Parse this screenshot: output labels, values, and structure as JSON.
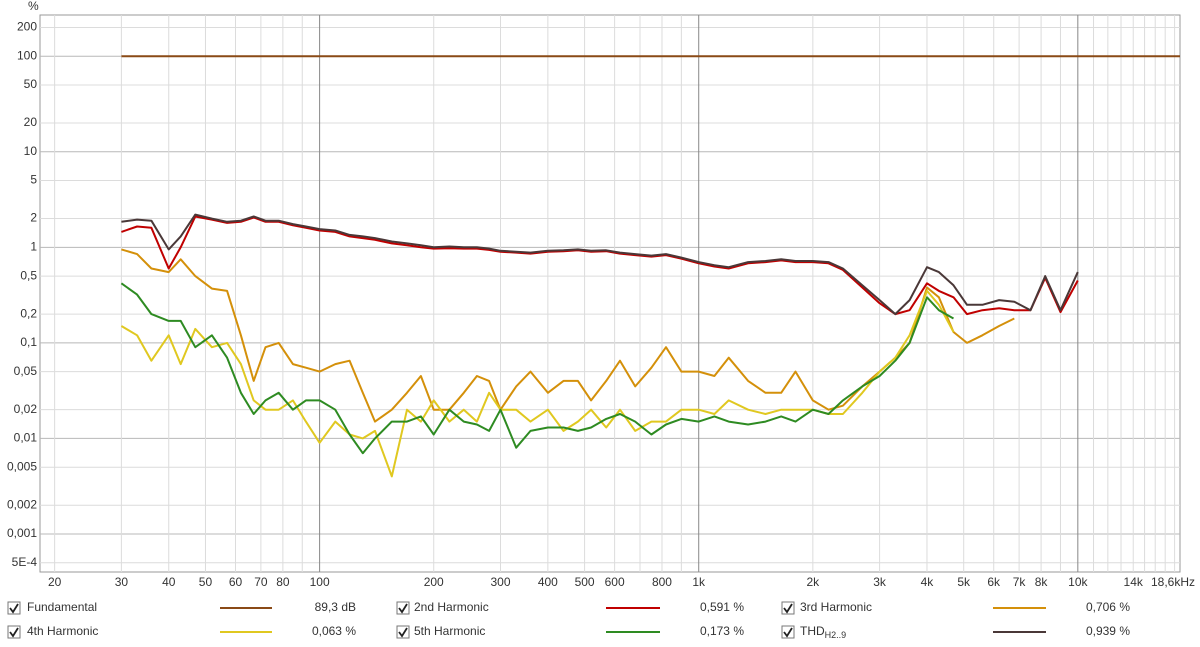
{
  "chart_data": {
    "type": "line",
    "y_label": "%",
    "log_x": true,
    "log_y": true,
    "grid": true,
    "xlim": [
      18.3,
      18600
    ],
    "ylim": [
      0.0004,
      270
    ],
    "xticks": [
      20,
      30,
      40,
      50,
      60,
      70,
      80,
      100,
      200,
      300,
      400,
      500,
      600,
      800,
      {
        "value": 1000,
        "label": "1k"
      },
      {
        "value": 2000,
        "label": "2k"
      },
      {
        "value": 3000,
        "label": "3k"
      },
      {
        "value": 4000,
        "label": "4k"
      },
      {
        "value": 5000,
        "label": "5k"
      },
      {
        "value": 6000,
        "label": "6k"
      },
      {
        "value": 7000,
        "label": "7k"
      },
      {
        "value": 8000,
        "label": "8k"
      },
      {
        "value": 10000,
        "label": "10k"
      },
      {
        "value": 14000,
        "label": "14k"
      },
      {
        "value": 18600,
        "label": "18,6kHz"
      }
    ],
    "xminor_ticks": [
      90,
      700,
      900,
      9000,
      11000,
      12000,
      13000,
      15000,
      16000,
      17000,
      18000
    ],
    "yticks": [
      200,
      100,
      50,
      20,
      10,
      5,
      2,
      1,
      {
        "value": 0.5,
        "label": "0,5"
      },
      {
        "value": 0.2,
        "label": "0,2"
      },
      {
        "value": 0.1,
        "label": "0,1"
      },
      {
        "value": 0.05,
        "label": "0,05"
      },
      {
        "value": 0.02,
        "label": "0,02"
      },
      {
        "value": 0.01,
        "label": "0,01"
      },
      {
        "value": 0.005,
        "label": "0,005"
      },
      {
        "value": 0.002,
        "label": "0,002"
      },
      {
        "value": 0.001,
        "label": "0,001"
      },
      {
        "value": 0.0005,
        "label": "5E-4"
      }
    ],
    "x": [
      30,
      33,
      36,
      40,
      43,
      47,
      52,
      57,
      62,
      67,
      72,
      78,
      85,
      92,
      100,
      110,
      120,
      130,
      140,
      155,
      170,
      185,
      200,
      220,
      240,
      260,
      280,
      300,
      330,
      360,
      400,
      440,
      480,
      520,
      570,
      620,
      680,
      750,
      820,
      900,
      1000,
      1100,
      1200,
      1350,
      1500,
      1650,
      1800,
      2000,
      2200,
      2400,
      2700,
      3000,
      3300,
      3600,
      4000,
      4300,
      4700,
      5100,
      5600,
      6200,
      6800,
      7500,
      8200,
      9000,
      10000,
      18600
    ],
    "series": [
      {
        "name": "Fundamental",
        "readout": "89,3 dB",
        "color": "#8a4a16",
        "values": [
          100,
          100,
          100,
          100,
          100,
          100,
          100,
          100,
          100,
          100,
          100,
          100,
          100,
          100,
          100,
          100,
          100,
          100,
          100,
          100,
          100,
          100,
          100,
          100,
          100,
          100,
          100,
          100,
          100,
          100,
          100,
          100,
          100,
          100,
          100,
          100,
          100,
          100,
          100,
          100,
          100,
          100,
          100,
          100,
          100,
          100,
          100,
          100,
          100,
          100,
          100,
          100,
          100,
          100,
          100,
          100,
          100,
          100,
          100,
          100,
          100,
          100,
          100,
          100,
          100,
          100
        ]
      },
      {
        "name": "2nd Harmonic",
        "readout": "0,591 %",
        "color": "#c00000",
        "values": [
          1.45,
          1.65,
          1.6,
          0.6,
          1.0,
          2.1,
          1.95,
          1.8,
          1.85,
          2.05,
          1.85,
          1.85,
          1.7,
          1.6,
          1.5,
          1.45,
          1.3,
          1.25,
          1.2,
          1.1,
          1.05,
          1.0,
          0.97,
          0.98,
          0.97,
          0.97,
          0.94,
          0.9,
          0.88,
          0.86,
          0.9,
          0.91,
          0.93,
          0.9,
          0.91,
          0.86,
          0.83,
          0.8,
          0.83,
          0.76,
          0.68,
          0.63,
          0.6,
          0.68,
          0.7,
          0.73,
          0.7,
          0.7,
          0.68,
          0.58,
          0.38,
          0.26,
          0.2,
          0.22,
          0.42,
          0.35,
          0.3,
          0.2,
          0.22,
          0.23,
          0.22,
          0.22,
          0.48,
          0.21,
          0.45,
          null
        ]
      },
      {
        "name": "3rd Harmonic",
        "readout": "0,706 %",
        "color": "#d4900a",
        "values": [
          0.95,
          0.85,
          0.6,
          0.55,
          0.75,
          0.5,
          0.37,
          0.35,
          0.12,
          0.04,
          0.09,
          0.1,
          0.06,
          0.055,
          0.05,
          0.06,
          0.065,
          0.03,
          0.015,
          0.02,
          0.03,
          0.045,
          0.02,
          0.02,
          0.03,
          0.045,
          0.04,
          0.02,
          0.035,
          0.05,
          0.03,
          0.04,
          0.04,
          0.025,
          0.04,
          0.065,
          0.035,
          0.055,
          0.09,
          0.05,
          0.05,
          0.045,
          0.07,
          0.04,
          0.03,
          0.03,
          0.05,
          0.025,
          0.02,
          0.022,
          0.035,
          0.05,
          0.07,
          0.1,
          0.38,
          0.3,
          0.13,
          0.1,
          0.12,
          0.15,
          0.18,
          null,
          null,
          null,
          null,
          null
        ]
      },
      {
        "name": "4th Harmonic",
        "readout": "0,063 %",
        "color": "#e0c820",
        "values": [
          0.15,
          0.12,
          0.065,
          0.12,
          0.06,
          0.14,
          0.09,
          0.1,
          0.06,
          0.025,
          0.02,
          0.02,
          0.025,
          0.015,
          0.009,
          0.015,
          0.011,
          0.01,
          0.012,
          0.004,
          0.02,
          0.015,
          0.025,
          0.015,
          0.02,
          0.015,
          0.03,
          0.02,
          0.02,
          0.015,
          0.02,
          0.012,
          0.015,
          0.02,
          0.013,
          0.02,
          0.012,
          0.015,
          0.015,
          0.02,
          0.02,
          0.018,
          0.025,
          0.02,
          0.018,
          0.02,
          0.02,
          0.02,
          0.018,
          0.018,
          0.03,
          0.05,
          0.07,
          0.12,
          0.35,
          0.25,
          0.13,
          null,
          null,
          null,
          null,
          null,
          null,
          null,
          null,
          null
        ]
      },
      {
        "name": "5th Harmonic",
        "readout": "0,173 %",
        "color": "#2e8b22",
        "values": [
          0.42,
          0.32,
          0.2,
          0.17,
          0.17,
          0.09,
          0.12,
          0.07,
          0.03,
          0.018,
          0.025,
          0.03,
          0.02,
          0.025,
          0.025,
          0.02,
          0.011,
          0.007,
          0.01,
          0.015,
          0.015,
          0.017,
          0.011,
          0.02,
          0.015,
          0.014,
          0.012,
          0.02,
          0.008,
          0.012,
          0.013,
          0.013,
          0.012,
          0.013,
          0.016,
          0.018,
          0.015,
          0.011,
          0.014,
          0.016,
          0.015,
          0.017,
          0.015,
          0.014,
          0.015,
          0.017,
          0.015,
          0.02,
          0.018,
          0.025,
          0.035,
          0.045,
          0.065,
          0.1,
          0.3,
          0.22,
          0.18,
          null,
          null,
          null,
          null,
          null,
          null,
          null,
          null,
          null
        ]
      },
      {
        "name": "THD",
        "subscript": "H2..9",
        "readout": "0,939 %",
        "color": "#4a3838",
        "values": [
          1.85,
          1.95,
          1.9,
          0.95,
          1.3,
          2.2,
          2.0,
          1.85,
          1.9,
          2.1,
          1.9,
          1.9,
          1.75,
          1.65,
          1.55,
          1.5,
          1.35,
          1.3,
          1.25,
          1.15,
          1.1,
          1.05,
          1.0,
          1.02,
          1.0,
          1.0,
          0.97,
          0.92,
          0.9,
          0.88,
          0.92,
          0.93,
          0.95,
          0.92,
          0.93,
          0.88,
          0.85,
          0.82,
          0.85,
          0.78,
          0.7,
          0.65,
          0.62,
          0.7,
          0.72,
          0.75,
          0.72,
          0.72,
          0.7,
          0.6,
          0.4,
          0.28,
          0.2,
          0.28,
          0.62,
          0.55,
          0.4,
          0.25,
          0.25,
          0.28,
          0.27,
          0.22,
          0.5,
          0.22,
          0.55,
          null
        ]
      }
    ]
  }
}
